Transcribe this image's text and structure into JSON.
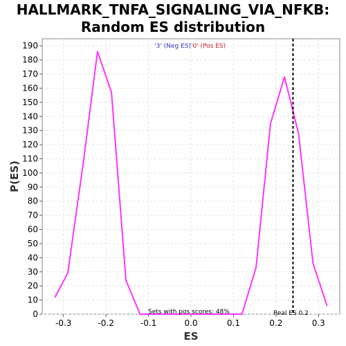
{
  "title_line1": "HALLMARK_TNFA_SIGNALING_VIA_NFKB:",
  "title_line2": "Random ES distribution",
  "chart_data": {
    "type": "line",
    "title": "HALLMARK_TNFA_SIGNALING_VIA_NFKB: Random ES distribution",
    "xlabel": "ES",
    "ylabel": "P(ES)",
    "xlim": [
      -0.35,
      0.35
    ],
    "ylim": [
      0,
      195
    ],
    "x_ticks": [
      "-0.3",
      "-0.2",
      "-0.1",
      "0.0",
      "0.1",
      "0.2",
      "0.3"
    ],
    "y_ticks": [
      "0",
      "10",
      "20",
      "30",
      "40",
      "50",
      "60",
      "70",
      "80",
      "90",
      "100",
      "110",
      "120",
      "130",
      "140",
      "150",
      "160",
      "170",
      "180",
      "190"
    ],
    "grid": true,
    "series": [
      {
        "color": "#ff33ff",
        "points": [
          [
            -0.32,
            12
          ],
          [
            -0.29,
            29
          ],
          [
            -0.253,
            108
          ],
          [
            -0.22,
            186
          ],
          [
            -0.187,
            157
          ],
          [
            -0.153,
            24
          ],
          [
            -0.12,
            0
          ],
          [
            0.12,
            0
          ],
          [
            0.153,
            33
          ],
          [
            0.187,
            135
          ],
          [
            0.22,
            168
          ],
          [
            0.253,
            128
          ],
          [
            0.287,
            36
          ],
          [
            0.32,
            6
          ]
        ]
      }
    ],
    "real_es": 0.24,
    "legend": {
      "neg_label": "'3' (Neg ES)",
      "pos_label": "'0' (Pos ES)",
      "neg_color": "#3333cc",
      "pos_color": "#cc2222"
    },
    "annotations": {
      "pos_scores": "Sets with pos scores: 48%",
      "real_es_label": "Real ES 0.2"
    }
  }
}
